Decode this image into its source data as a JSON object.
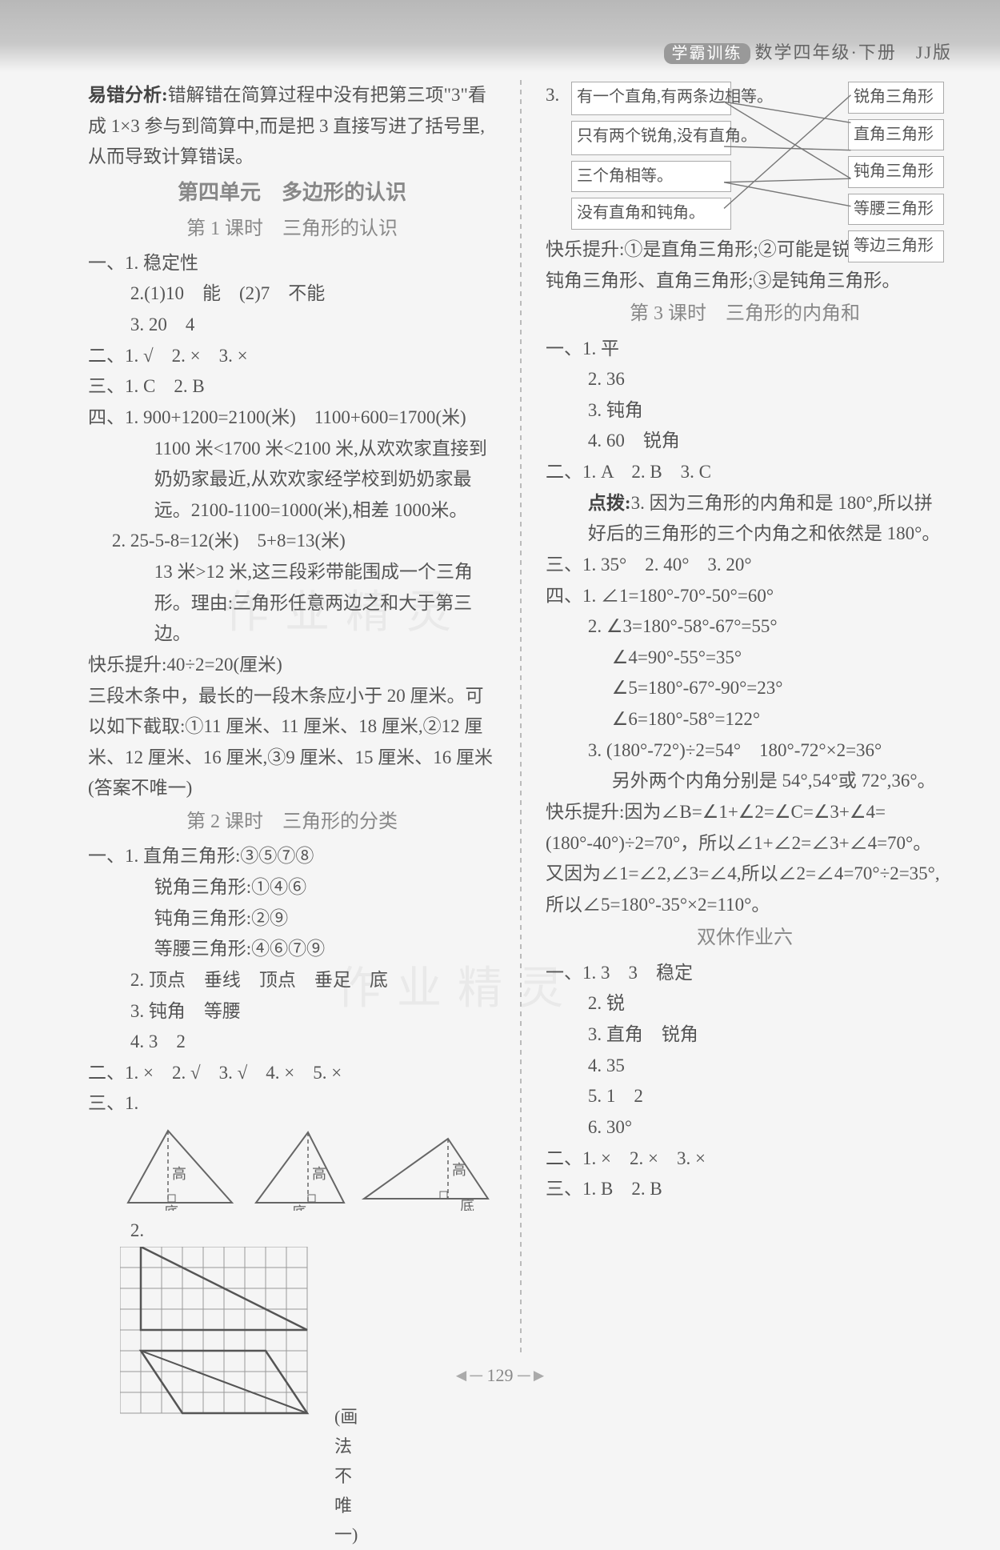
{
  "header": {
    "pill": "学霸训练",
    "text": "数学四年级·下册　JJ版"
  },
  "pageNumber": "129",
  "watermark1": "作业精灵",
  "watermark2": "作业精灵",
  "left": {
    "errorAnalysis": {
      "label": "易错分析:",
      "text": "错解错在简算过程中没有把第三项\"3\"看成 1×3 参与到简算中,而是把 3 直接写进了括号里,从而导致计算错误。"
    },
    "unitTitle": "第四单元　多边形的认识",
    "lesson1Title": "第 1 课时　三角形的认识",
    "l1_1_1": "一、1. 稳定性",
    "l1_1_2": "2.(1)10　能　(2)7　不能",
    "l1_1_3": "3. 20　4",
    "l1_2": "二、1. √　2. ×　3. ×",
    "l1_3": "三、1. C　2. B",
    "l1_4_1a": "四、1. 900+1200=2100(米)　1100+600=1700(米)",
    "l1_4_1b": "1100 米<1700 米<2100 米,从欢欢家直接到奶奶家最近,从欢欢家经学校到奶奶家最远。2100-1100=1000(米),相差 1000米。",
    "l1_4_2a": "2. 25-5-8=12(米)　5+8=13(米)",
    "l1_4_2b": "13 米>12 米,这三段彩带能围成一个三角形。理由:三角形任意两边之和大于第三边。",
    "l1_happy": "快乐提升:40÷2=20(厘米)",
    "l1_happy2": "三段木条中，最长的一段木条应小于 20 厘米。可以如下截取:①11 厘米、11 厘米、18 厘米,②12 厘米、12 厘米、16 厘米,③9 厘米、15 厘米、16 厘米(答案不唯一)",
    "lesson2Title": "第 2 课时　三角形的分类",
    "l2_1_1": "一、1. 直角三角形:③⑤⑦⑧",
    "l2_1_2": "锐角三角形:①④⑥",
    "l2_1_3": "钝角三角形:②⑨",
    "l2_1_4": "等腰三角形:④⑥⑦⑨",
    "l2_1_5": "2. 顶点　垂线　顶点　垂足　底",
    "l2_1_6": "3. 钝角　等腰",
    "l2_1_7": "4. 3　2",
    "l2_2": "二、1. ×　2. √　3. √　4. ×　5. ×",
    "l2_3": "三、1.",
    "l2_3_2": "2.",
    "gridNote": "(画法不唯一)",
    "triLabels": {
      "gao": "高",
      "di": "底"
    }
  },
  "right": {
    "match": {
      "num": "3.",
      "left": [
        "有一个直角,有两条边相等。",
        "只有两个锐角,没有直角。",
        "三个角相等。",
        "没有直角和钝角。"
      ],
      "right": [
        "锐角三角形",
        "直角三角形",
        "钝角三角形",
        "等腰三角形",
        "等边三角形"
      ]
    },
    "happy1": "快乐提升:①是直角三角形;②可能是锐角三角形、钝角三角形、直角三角形;③是钝角三角形。",
    "lesson3Title": "第 3 课时　三角形的内角和",
    "l3_1_1": "一、1. 平",
    "l3_1_2": "2. 36",
    "l3_1_3": "3. 钝角",
    "l3_1_4": "4. 60　锐角",
    "l3_2": "二、1. A　2. B　3. C",
    "l3_dianbo_label": "点拨:",
    "l3_dianbo": "3. 因为三角形的内角和是 180°,所以拼好后的三角形的三个内角之和依然是 180°。",
    "l3_3": "三、1. 35°　2. 40°　3. 20°",
    "l3_4_1": "四、1. ∠1=180°-70°-50°=60°",
    "l3_4_2a": "2. ∠3=180°-58°-67°=55°",
    "l3_4_2b": "∠4=90°-55°=35°",
    "l3_4_2c": "∠5=180°-67°-90°=23°",
    "l3_4_2d": "∠6=180°-58°=122°",
    "l3_4_3a": "3. (180°-72°)÷2=54°　180°-72°×2=36°",
    "l3_4_3b": "另外两个内角分别是 54°,54°或 72°,36°。",
    "l3_happy": "快乐提升:因为∠B=∠1+∠2=∠C=∠3+∠4=(180°-40°)÷2=70°，所以∠1+∠2=∠3+∠4=70°。又因为∠1=∠2,∠3=∠4,所以∠2=∠4=70°÷2=35°,所以∠5=180°-35°×2=110°。",
    "hw6Title": "双休作业六",
    "hw6_1_1": "一、1. 3　3　稳定",
    "hw6_1_2": "2. 锐",
    "hw6_1_3": "3. 直角　锐角",
    "hw6_1_4": "4. 35",
    "hw6_1_5": "5. 1　2",
    "hw6_1_6": "6. 30°",
    "hw6_2": "二、1. ×　2. ×　3. ×",
    "hw6_3": "三、1. B　2. B"
  }
}
